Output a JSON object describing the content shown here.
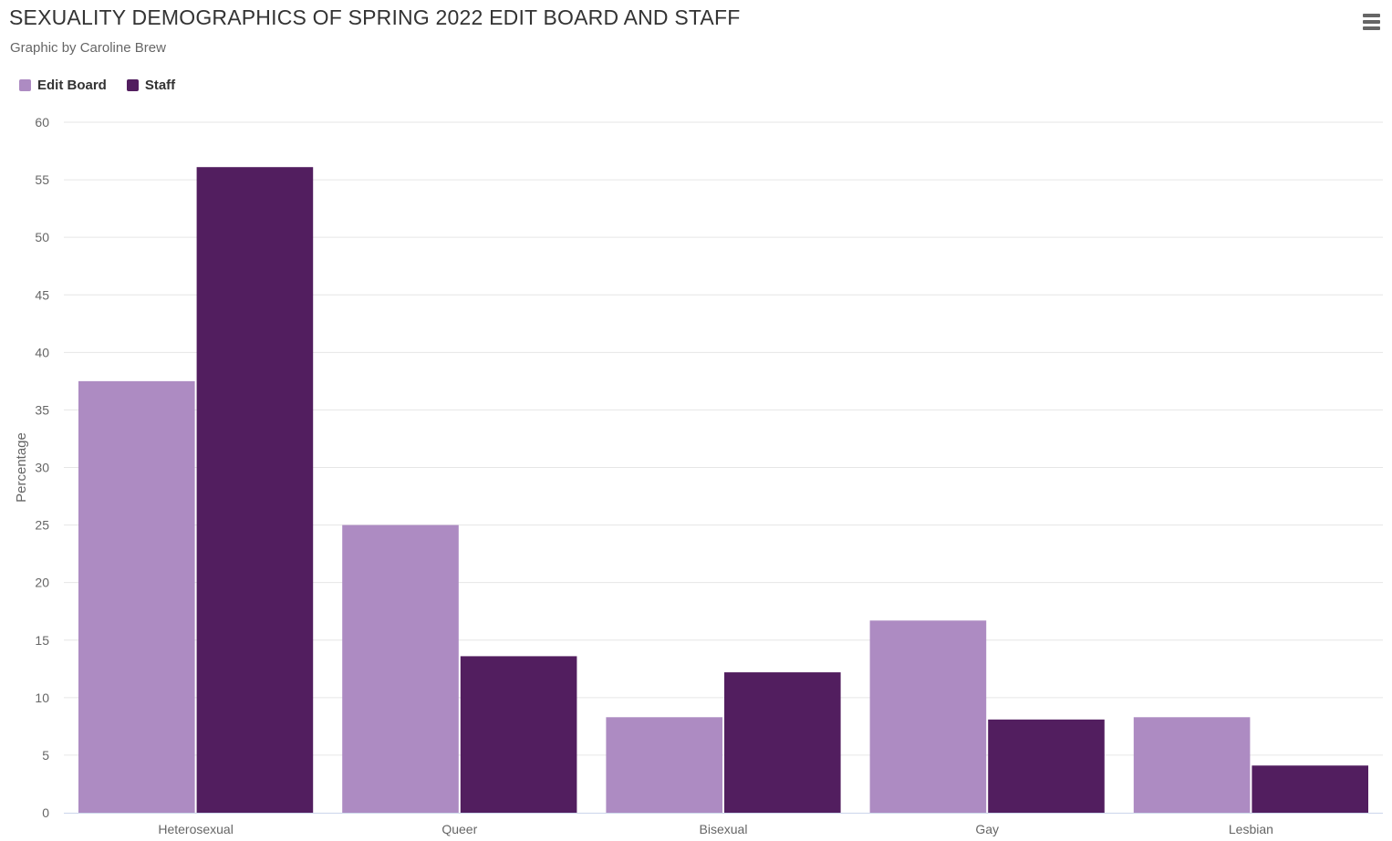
{
  "header": {
    "title": "SEXUALITY DEMOGRAPHICS OF SPRING 2022 EDIT BOARD AND STAFF",
    "subtitle": "Graphic by Caroline Brew",
    "menu_icon": "hamburger-menu-icon"
  },
  "colors": {
    "edit_board": "#ad8bc2",
    "staff": "#521e5f",
    "gridline": "#e6e6e6",
    "axis_line": "#ccd6eb"
  },
  "chart_data": {
    "type": "bar",
    "title": "SEXUALITY DEMOGRAPHICS OF SPRING 2022 EDIT BOARD AND STAFF",
    "subtitle": "Graphic by Caroline Brew",
    "xlabel": "",
    "ylabel": "Percentage",
    "ylim": [
      0,
      60
    ],
    "yticks": [
      "0",
      "5",
      "10",
      "15",
      "20",
      "25",
      "30",
      "35",
      "40",
      "45",
      "50",
      "55",
      "60"
    ],
    "grid": true,
    "legend_position": "top-left",
    "categories": [
      "Heterosexual",
      "Queer",
      "Bisexual",
      "Gay",
      "Lesbian"
    ],
    "series": [
      {
        "name": "Edit Board",
        "color": "#ad8bc2",
        "values": [
          37.5,
          25,
          8.3,
          16.7,
          8.3
        ]
      },
      {
        "name": "Staff",
        "color": "#521e5f",
        "values": [
          56.1,
          13.6,
          12.2,
          8.1,
          4.1
        ]
      }
    ]
  }
}
